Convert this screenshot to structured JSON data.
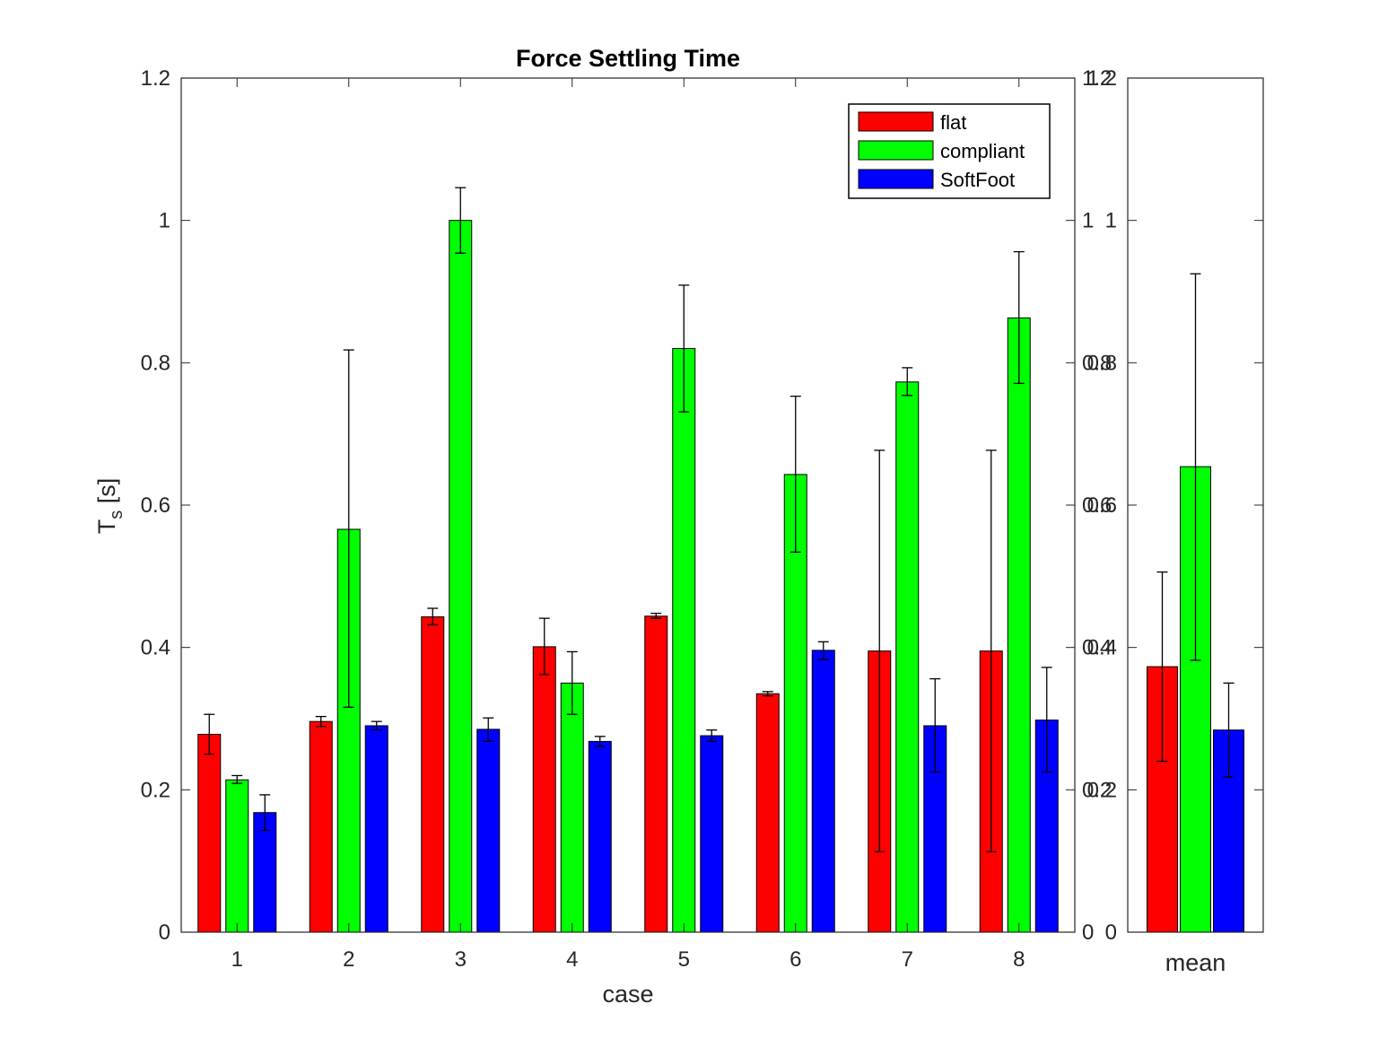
{
  "chart_data": [
    {
      "type": "bar",
      "title": "Force Settling Time",
      "xlabel": "case",
      "ylabel": "T",
      "ylabel_subscript": "s",
      "ylabel_unit": "[s]",
      "ylim": [
        0,
        1.2
      ],
      "yticks": [
        "0",
        "0.2",
        "0.4",
        "0.6",
        "0.8",
        "1",
        "1.2"
      ],
      "categories": [
        "1",
        "2",
        "3",
        "4",
        "5",
        "6",
        "7",
        "8"
      ],
      "legend_position": "top-right",
      "series": [
        {
          "name": "flat",
          "color": "#ff0000",
          "values": [
            0.278,
            0.296,
            0.443,
            0.401,
            0.444,
            0.335,
            0.395,
            0.395
          ],
          "err_low": [
            0.25,
            0.289,
            0.432,
            0.362,
            0.441,
            0.332,
            0.113,
            0.113
          ],
          "err_high": [
            0.306,
            0.303,
            0.455,
            0.441,
            0.448,
            0.338,
            0.677,
            0.677
          ]
        },
        {
          "name": "compliant",
          "color": "#00ff00",
          "values": [
            0.214,
            0.566,
            1.0,
            0.35,
            0.82,
            0.643,
            0.773,
            0.863
          ],
          "err_low": [
            0.209,
            0.316,
            0.954,
            0.306,
            0.731,
            0.534,
            0.754,
            0.771
          ],
          "err_high": [
            0.22,
            0.818,
            1.046,
            0.394,
            0.909,
            0.753,
            0.793,
            0.956
          ]
        },
        {
          "name": "SoftFoot",
          "color": "#0000ff",
          "values": [
            0.168,
            0.29,
            0.285,
            0.268,
            0.276,
            0.396,
            0.29,
            0.298
          ],
          "err_low": [
            0.143,
            0.284,
            0.268,
            0.261,
            0.268,
            0.383,
            0.225,
            0.225
          ],
          "err_high": [
            0.193,
            0.296,
            0.301,
            0.275,
            0.284,
            0.408,
            0.356,
            0.372
          ]
        }
      ]
    },
    {
      "type": "bar",
      "ylim": [
        0,
        1.2
      ],
      "yticks": [
        "0",
        "0.2",
        "0.4",
        "0.6",
        "0.8",
        "1",
        "1.2"
      ],
      "categories": [
        "mean"
      ],
      "series": [
        {
          "name": "flat",
          "color": "#ff0000",
          "values": [
            0.373
          ],
          "err_low": [
            0.24
          ],
          "err_high": [
            0.506
          ]
        },
        {
          "name": "compliant",
          "color": "#00ff00",
          "values": [
            0.654
          ],
          "err_low": [
            0.382
          ],
          "err_high": [
            0.925
          ]
        },
        {
          "name": "SoftFoot",
          "color": "#0000ff",
          "values": [
            0.284
          ],
          "err_low": [
            0.218
          ],
          "err_high": [
            0.35
          ]
        }
      ]
    }
  ]
}
